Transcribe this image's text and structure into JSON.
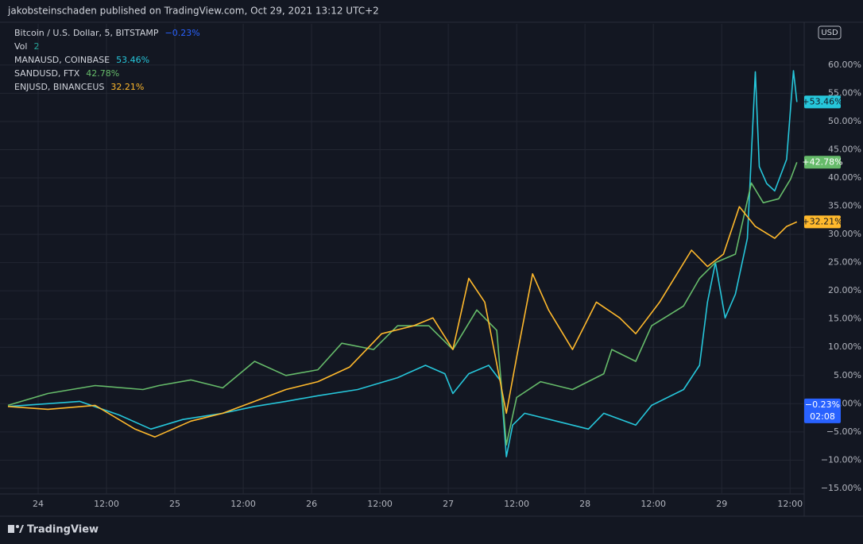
{
  "header": {
    "text": "jakobsteinschaden published on TradingView.com, Oct 29, 2021 13:12 UTC+2"
  },
  "footer": {
    "brand": "TradingView"
  },
  "chart_data": {
    "type": "line",
    "currency": "USD",
    "legend_extra": [
      {
        "name": "Bitcoin / U.S. Dollar, 5, BITSTAMP",
        "value": "−0.23%",
        "color": "#2962ff"
      },
      {
        "name": "Vol",
        "value": "2",
        "color": "#26a69a"
      }
    ],
    "price_badge": {
      "value": -0.23,
      "label": "−0.23%",
      "countdown": "02:08",
      "color": "#2962ff"
    },
    "series": [
      {
        "name": "MANAUSD, COINBASE",
        "color": "#26c6da",
        "legend_value": "53.46%",
        "last_label": "+53.46%",
        "last_value": 53.46,
        "x": [
          -5.3,
          1.7,
          7.3,
          14.2,
          19.8,
          25.4,
          32.4,
          38,
          43.5,
          49.1,
          56.1,
          63.1,
          68,
          71.4,
          72.8,
          75.6,
          79.1,
          81.2,
          82.2,
          83.3,
          85.4,
          91,
          96.6,
          99.3,
          104.9,
          107.7,
          113.3,
          116.1,
          117.5,
          118.9,
          120.6,
          122.4,
          124.5,
          125.9,
          126.6,
          127.9,
          129.3,
          131.4,
          132.6,
          133.2
        ],
        "values": [
          -0.5,
          0,
          0.4,
          -2,
          -4.5,
          -2.8,
          -1.7,
          -0.5,
          0.4,
          1.4,
          2.5,
          4.6,
          6.8,
          5.3,
          1.8,
          5.3,
          6.8,
          4,
          -9.4,
          -3.8,
          -1.7,
          -3.1,
          -4.5,
          -1.7,
          -3.8,
          -0.3,
          2.5,
          6.8,
          18,
          25,
          15.2,
          19.4,
          29.3,
          58.8,
          42,
          39,
          37.7,
          43.3,
          59,
          53.46
        ]
      },
      {
        "name": "SANDUSD, FTX",
        "color": "#66bb6a",
        "legend_value": "42.78%",
        "last_label": "+42.78%",
        "last_value": 42.78,
        "x": [
          -5.3,
          1.7,
          10,
          18.4,
          21.2,
          26.8,
          32.4,
          38,
          43.5,
          49.1,
          53.3,
          58.9,
          63.1,
          68.6,
          72.8,
          77,
          80.5,
          82.2,
          84,
          88.2,
          93.8,
          99.3,
          100.7,
          104.9,
          107.7,
          113.3,
          116.1,
          118.9,
          122.4,
          125.2,
          127.3,
          130,
          132.1,
          133.2
        ],
        "values": [
          -0.3,
          1.8,
          3.2,
          2.5,
          3.2,
          4.2,
          2.8,
          7.5,
          5,
          6,
          10.7,
          9.6,
          13.8,
          13.8,
          9.6,
          16.6,
          13,
          -7.3,
          1.1,
          3.9,
          2.5,
          5.3,
          9.6,
          7.5,
          13.8,
          17.3,
          22.2,
          25,
          26.5,
          39.1,
          35.6,
          36.3,
          39.8,
          42.78
        ]
      },
      {
        "name": "ENJUSD, BINANCEUS",
        "color": "#ffb92c",
        "legend_value": "32.21%",
        "last_label": "+32.21%",
        "last_value": 32.21,
        "x": [
          -5.3,
          1.7,
          10,
          17,
          20.5,
          26.8,
          32.4,
          38,
          43.5,
          49.1,
          54.7,
          60.3,
          65.9,
          69.3,
          72.8,
          75.6,
          78.4,
          82.2,
          84,
          86.8,
          89.6,
          93.8,
          98,
          102.1,
          104.9,
          109.1,
          114.7,
          117.5,
          120.3,
          123.1,
          125.9,
          129.3,
          131.4,
          133.2
        ],
        "values": [
          -0.5,
          -1,
          -0.3,
          -4.5,
          -5.9,
          -3.1,
          -1.7,
          0.4,
          2.5,
          3.9,
          6.5,
          12.4,
          13.8,
          15.2,
          9.6,
          22.2,
          18,
          -1.7,
          8.2,
          23,
          16.6,
          9.6,
          18,
          15.2,
          12.4,
          18,
          27.2,
          24.3,
          26.5,
          34.9,
          31.4,
          29.3,
          31.4,
          32.21
        ]
      }
    ],
    "xlim": [
      -5.3,
      134.2
    ],
    "xticks": [
      {
        "value": 0,
        "label": "24"
      },
      {
        "value": 12,
        "label": "12:00"
      },
      {
        "value": 24,
        "label": "25"
      },
      {
        "value": 36,
        "label": "12:00"
      },
      {
        "value": 48,
        "label": "26"
      },
      {
        "value": 60,
        "label": "12:00"
      },
      {
        "value": 72,
        "label": "27"
      },
      {
        "value": 84,
        "label": "12:00"
      },
      {
        "value": 96,
        "label": "28"
      },
      {
        "value": 108,
        "label": "12:00"
      },
      {
        "value": 120,
        "label": "29"
      },
      {
        "value": 132,
        "label": "12:00"
      }
    ],
    "ylim": [
      -16,
      67.3
    ],
    "yticks": [
      {
        "value": -15,
        "label": "−15.00%"
      },
      {
        "value": -10,
        "label": "−10.00%"
      },
      {
        "value": -5,
        "label": "−5.00%"
      },
      {
        "value": 0,
        "label": "0.00%"
      },
      {
        "value": 5,
        "label": "5.00%"
      },
      {
        "value": 10,
        "label": "10.00%"
      },
      {
        "value": 15,
        "label": "15.00%"
      },
      {
        "value": 20,
        "label": "20.00%"
      },
      {
        "value": 25,
        "label": "25.00%"
      },
      {
        "value": 30,
        "label": "30.00%"
      },
      {
        "value": 35,
        "label": "35.00%"
      },
      {
        "value": 40,
        "label": "40.00%"
      },
      {
        "value": 45,
        "label": "45.00%"
      },
      {
        "value": 50,
        "label": "50.00%"
      },
      {
        "value": 55,
        "label": "55.00%"
      },
      {
        "value": 60,
        "label": "60.00%"
      }
    ],
    "grid": true
  }
}
